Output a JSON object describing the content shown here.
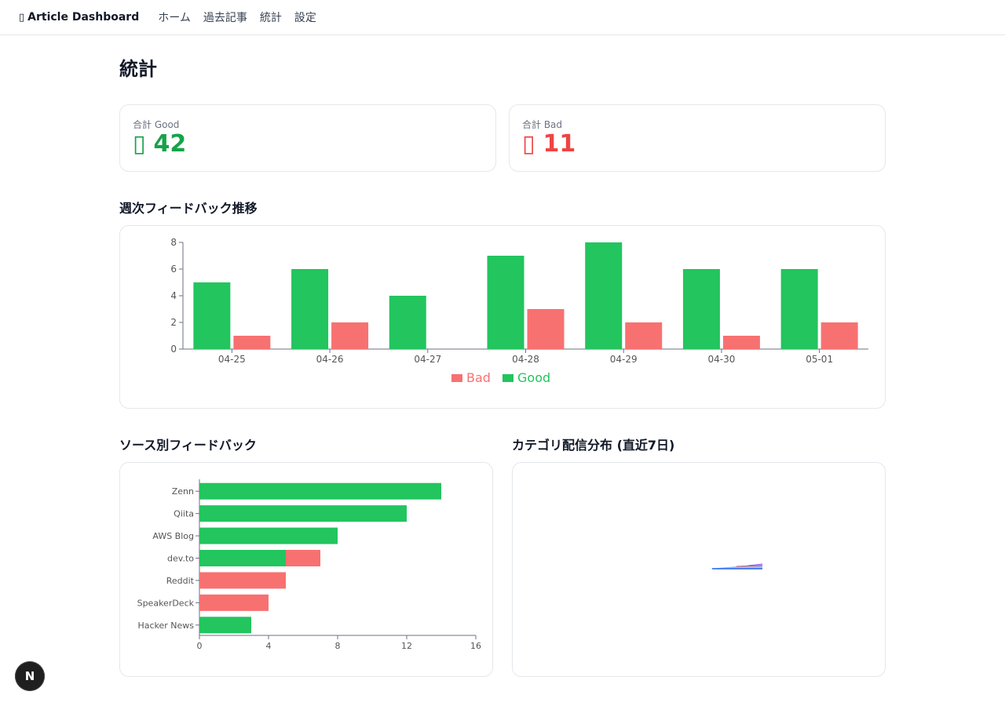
{
  "nav": {
    "brand_icon": "newspaper-icon",
    "brand": "Article Dashboard",
    "links": [
      "ホーム",
      "過去記事",
      "統計",
      "設定"
    ]
  },
  "page": {
    "title": "統計"
  },
  "stats": {
    "good": {
      "label": "合計 Good",
      "icon": "thumbs-up-icon",
      "value": "42",
      "color": "#16a34a"
    },
    "bad": {
      "label": "合計 Bad",
      "icon": "thumbs-down-icon",
      "value": "11",
      "color": "#ef4444"
    }
  },
  "sections": {
    "weekly": "週次フィードバック推移",
    "source": "ソース別フィードバック",
    "category": "カテゴリ配信分布 (直近7日)"
  },
  "colors": {
    "good": "#22c55e",
    "bad": "#f87171"
  },
  "chart_data": [
    {
      "type": "bar",
      "categories": [
        "04-25",
        "04-26",
        "04-27",
        "04-28",
        "04-29",
        "04-30",
        "05-01"
      ],
      "series": [
        {
          "name": "Good",
          "values": [
            5,
            6,
            4,
            7,
            8,
            6,
            6
          ]
        },
        {
          "name": "Bad",
          "values": [
            1,
            2,
            0,
            3,
            2,
            1,
            2
          ]
        }
      ],
      "legend": [
        "Bad",
        "Good"
      ],
      "legend_position": "bottom",
      "yticks": [
        0,
        2,
        4,
        6,
        8
      ],
      "ylim": [
        0,
        8
      ]
    },
    {
      "type": "bar",
      "orientation": "horizontal",
      "stacked": true,
      "categories": [
        "Zenn",
        "Qiita",
        "AWS Blog",
        "dev.to",
        "Reddit",
        "SpeakerDeck",
        "Hacker News"
      ],
      "series": [
        {
          "name": "Good",
          "values": [
            14,
            12,
            8,
            5,
            0,
            0,
            3
          ]
        },
        {
          "name": "Bad",
          "values": [
            0,
            0,
            0,
            2,
            5,
            4,
            0
          ]
        }
      ],
      "xticks": [
        0,
        4,
        8,
        12,
        16
      ],
      "xlim": [
        0,
        16
      ]
    }
  ],
  "fab": {
    "label": "N"
  }
}
